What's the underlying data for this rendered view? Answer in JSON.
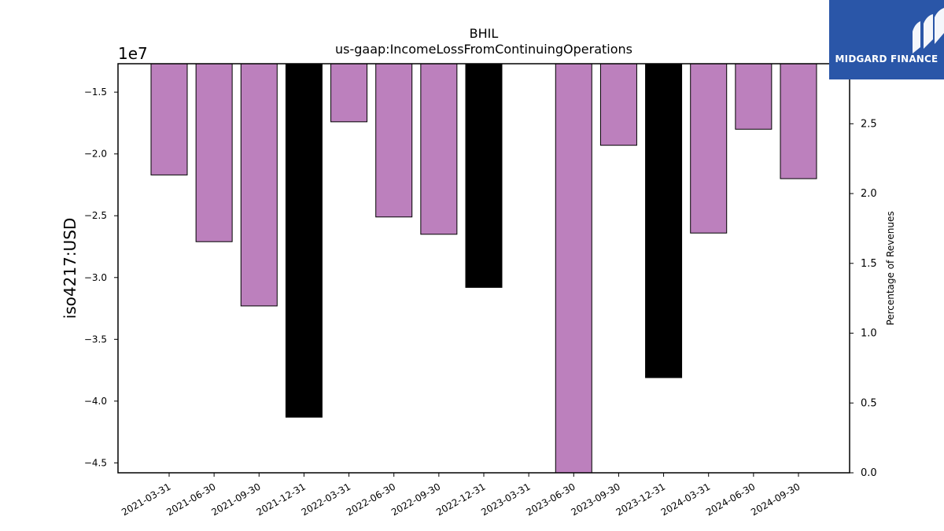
{
  "chart_data": {
    "type": "bar",
    "title": "BHIL",
    "subtitle": "us-gaap:IncomeLossFromContinuingOperations",
    "ylabel": "iso4217:USD",
    "ylabel_right": "Percentage of Revenues",
    "y_offset_label": "1e7",
    "categories": [
      "2021-03-31",
      "2021-06-30",
      "2021-09-30",
      "2021-12-31",
      "2022-03-31",
      "2022-06-30",
      "2022-09-30",
      "2022-12-31",
      "2023-03-31",
      "2023-06-30",
      "2023-09-30",
      "2023-12-31",
      "2024-03-31",
      "2024-06-30",
      "2024-09-30"
    ],
    "values": [
      -2.17,
      -2.71,
      -3.23,
      -4.13,
      -1.74,
      -2.51,
      -2.65,
      -3.08,
      null,
      -4.6,
      -1.93,
      -3.81,
      -2.64,
      -1.8,
      -2.2
    ],
    "bar_colors": [
      "#bc80bd",
      "#bc80bd",
      "#bc80bd",
      "#000000",
      "#bc80bd",
      "#bc80bd",
      "#bc80bd",
      "#000000",
      "#bc80bd",
      "#bc80bd",
      "#bc80bd",
      "#000000",
      "#bc80bd",
      "#bc80bd",
      "#bc80bd"
    ],
    "ylim": [
      -4.58,
      -1.27
    ],
    "yticks": [
      -1.5,
      -2.0,
      -2.5,
      -3.0,
      -3.5,
      -4.0,
      -4.5
    ],
    "ytick_labels": [
      "−1.5",
      "−2.0",
      "−2.5",
      "−3.0",
      "−3.5",
      "−4.0",
      "−4.5"
    ],
    "ylim_right": [
      0.0,
      2.93
    ],
    "yticks_right": [
      0.0,
      0.5,
      1.0,
      1.5,
      2.0,
      2.5
    ],
    "ytick_labels_right": [
      "0.0",
      "0.5",
      "1.0",
      "1.5",
      "2.0",
      "2.5"
    ],
    "grid": false,
    "colors": {
      "purple": "#bc80bd",
      "black": "#000000"
    }
  },
  "logo": {
    "text": "MIDGARD FINANCE",
    "background": "#2a56a8"
  }
}
